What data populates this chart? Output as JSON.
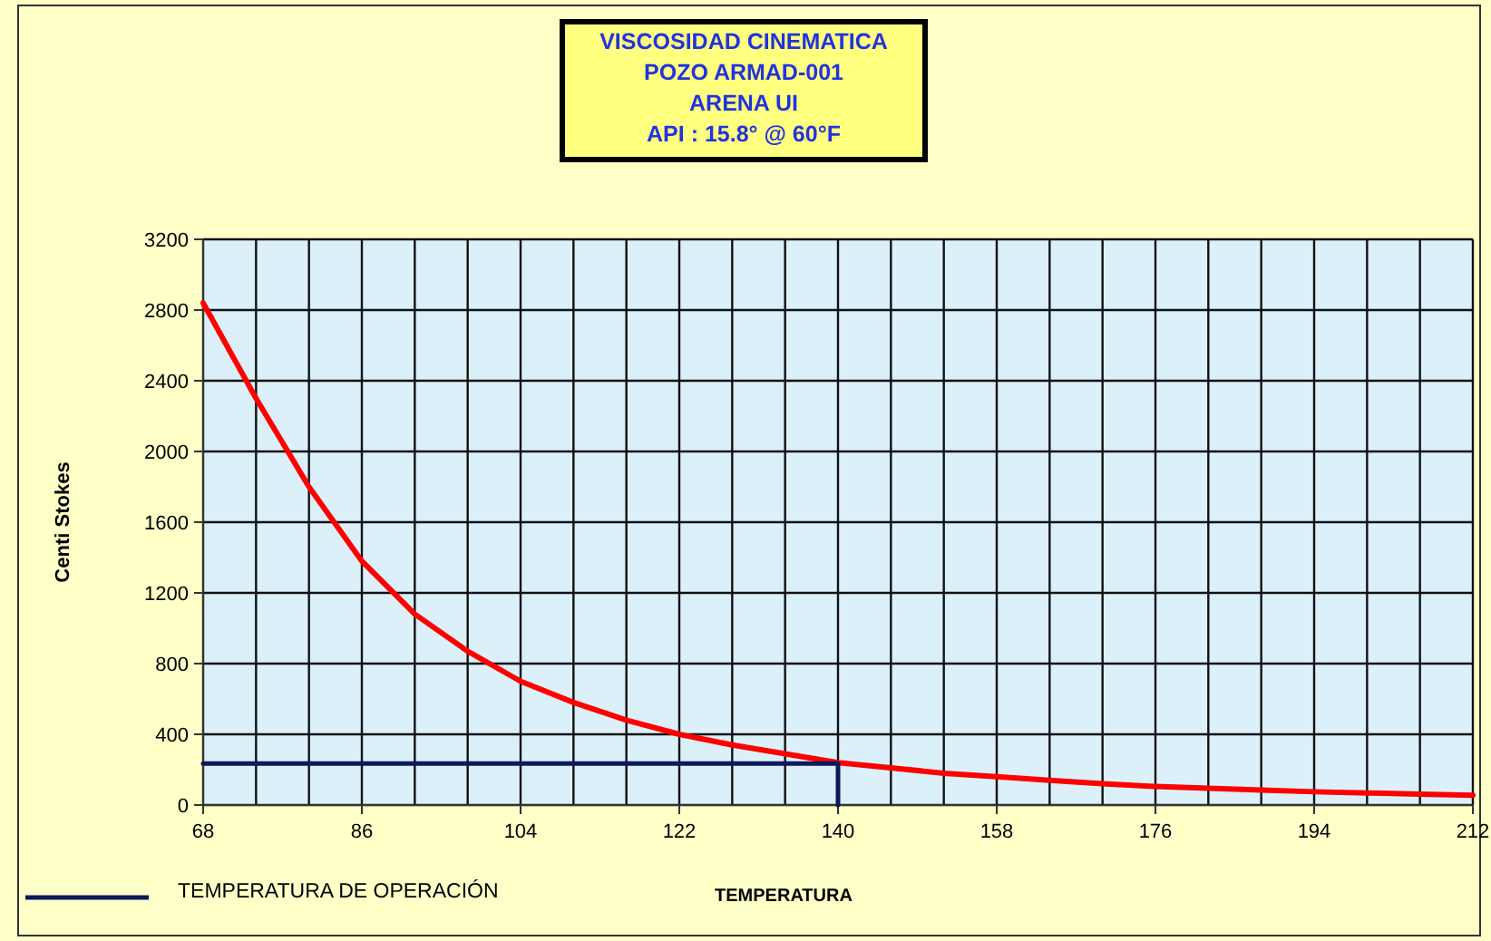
{
  "chart_data": {
    "type": "line",
    "title": "VISCOSIDAD CINEMATICA\nPOZO ARMAD-001\nARENA UI\nAPI : 15.8° @ 60°F",
    "xlabel": "TEMPERATURA",
    "ylabel": "Centi Stokes",
    "xlim": [
      68,
      212
    ],
    "xticks": [
      68,
      {
        "value": 74,
        "label": null
      },
      {
        "value": 80,
        "label": null
      },
      86,
      {
        "value": 92,
        "label": null
      },
      {
        "value": 98,
        "label": null
      },
      104,
      {
        "value": 110,
        "label": null
      },
      {
        "value": 116,
        "label": null
      },
      122,
      {
        "value": 128,
        "label": null
      },
      {
        "value": 134,
        "label": null
      },
      140,
      {
        "value": 146,
        "label": null
      },
      {
        "value": 152,
        "label": null
      },
      158,
      {
        "value": 164,
        "label": null
      },
      {
        "value": 170,
        "label": null
      },
      176,
      {
        "value": 182,
        "label": null
      },
      {
        "value": 188,
        "label": null
      },
      194,
      {
        "value": 200,
        "label": null
      },
      {
        "value": 206,
        "label": null
      },
      212
    ],
    "ylim": [
      0,
      3200
    ],
    "yticks": [
      0,
      400,
      800,
      1200,
      1600,
      2000,
      2400,
      2800,
      3200
    ],
    "grid": true,
    "legend": "bottom left",
    "marker": "none",
    "line_style": "solid",
    "series": [
      {
        "color": "#ff0000",
        "x": [
          68,
          74,
          80,
          86,
          92,
          98,
          104,
          110,
          116,
          122,
          128,
          134,
          140,
          146,
          152,
          158,
          164,
          170,
          176,
          182,
          188,
          194,
          200,
          206,
          212
        ],
        "values": [
          2840,
          2300,
          1800,
          1380,
          1080,
          870,
          700,
          580,
          480,
          400,
          340,
          290,
          240,
          210,
          180,
          160,
          140,
          120,
          105,
          95,
          85,
          75,
          68,
          62,
          55
        ]
      },
      {
        "name": "TEMPERATURA DE OPERACIÓN",
        "color": "#0a1a5a",
        "x": [
          68,
          140,
          140
        ],
        "values": [
          235,
          235,
          0
        ]
      }
    ]
  }
}
